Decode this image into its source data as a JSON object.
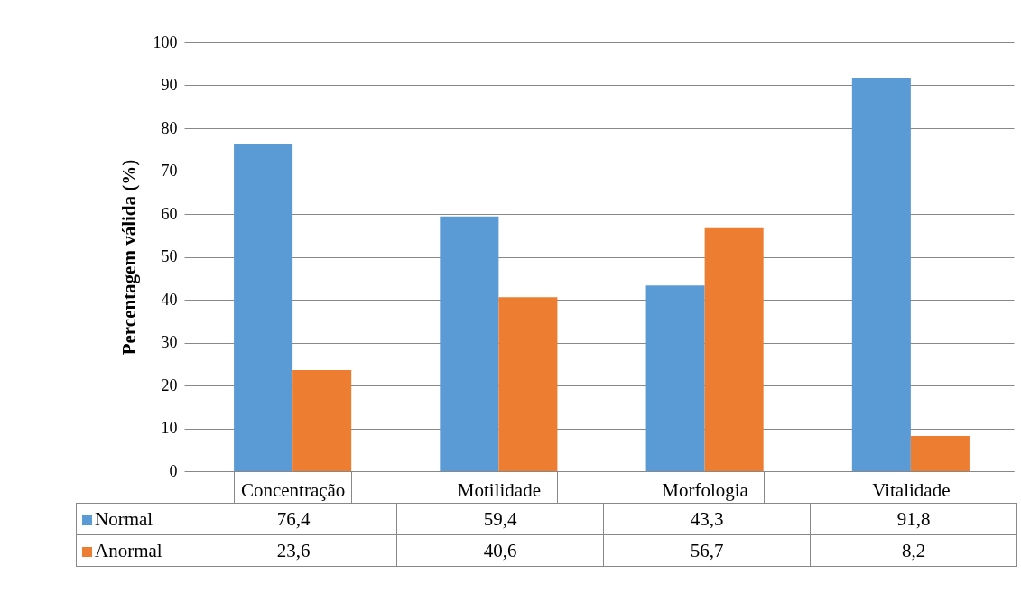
{
  "chart_data": {
    "type": "bar",
    "ylabel": "Percentagem válida (%)",
    "categories": [
      "Concentração",
      "Motilidade",
      "Morfologia",
      "Vitalidade"
    ],
    "series": [
      {
        "name": "Normal",
        "color": "#5b9bd5",
        "values": [
          76.4,
          59.4,
          43.3,
          91.8
        ],
        "value_labels": [
          "76,4",
          "59,4",
          "43,3",
          "91,8"
        ]
      },
      {
        "name": "Anormal",
        "color": "#ed7d31",
        "values": [
          23.6,
          40.6,
          56.7,
          8.2
        ],
        "value_labels": [
          "23,6",
          "40,6",
          "56,7",
          "8,2"
        ]
      }
    ],
    "ylim": [
      0,
      100
    ],
    "yticks": [
      0,
      10,
      20,
      30,
      40,
      50,
      60,
      70,
      80,
      90,
      100
    ],
    "grid": "y",
    "legend": "bottom"
  }
}
